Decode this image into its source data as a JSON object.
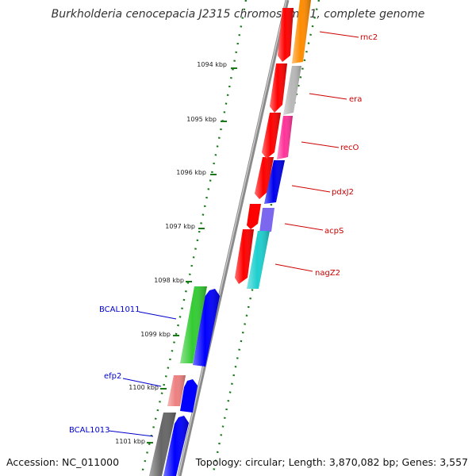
{
  "title": "Burkholderia cenocepacia J2315 chromosome 1, complete genome",
  "accession": "Accession: NC_011000",
  "summary": "Topology: circular; Length: 3,870,082 bp; Genes: 3,557",
  "tick_labels": [
    "1094 kbp",
    "1095 kbp",
    "1096 kbp",
    "1097 kbp",
    "1098 kbp",
    "1099 kbp",
    "1100 kbp",
    "1101 kbp"
  ],
  "genes_forward": [
    "rnc2",
    "era",
    "recO",
    "pdxJ2",
    "acpS",
    "nagZ2"
  ],
  "genes_reverse": [
    "BCAL1011",
    "efp2",
    "BCAL1013"
  ],
  "colors": {
    "forward_label": "#cc0000",
    "reverse_label": "#0000cc",
    "tick": "#1a7a1a",
    "backbone": "#8a8a8a",
    "cds_red": "#ff0000",
    "cds_blue": "#0000ff",
    "cds_green": "#33cc33",
    "cds_pink": "#ee8080",
    "cds_grey": "#666666",
    "rnc2": "#ff8c00",
    "era": "#b8b8b8",
    "recO": "#ff3399",
    "pdxJ2": "#0000ee",
    "acpS": "#7b68ee",
    "nagZ2": "#1ecfcf"
  }
}
